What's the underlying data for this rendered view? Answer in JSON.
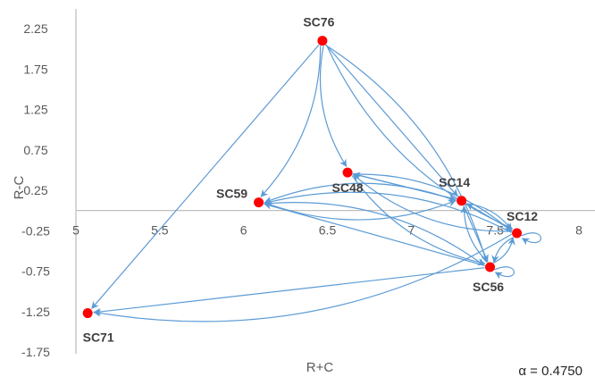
{
  "chart_data": {
    "type": "scatter",
    "xlabel": "R+C",
    "ylabel": "R-C",
    "xlim": [
      5,
      8
    ],
    "ylim": [
      -1.75,
      2.25
    ],
    "x_ticks": [
      "5",
      "5.5",
      "6",
      "6.5",
      "7",
      "7.5",
      "8"
    ],
    "y_ticks": [
      "2.25",
      "1.75",
      "1.25",
      "0.75",
      "0.25",
      "-0.25",
      "-0.75",
      "-1.25",
      "-1.75"
    ],
    "annotation": "α = 0.4750",
    "grid": false,
    "legend": "none",
    "marker_color": "#ff0000",
    "edge_color": "#5b9bd5",
    "points": [
      {
        "label": "SC76",
        "x": 6.47,
        "y": 2.1
      },
      {
        "label": "SC48",
        "x": 6.62,
        "y": 0.47
      },
      {
        "label": "SC59",
        "x": 6.09,
        "y": 0.1
      },
      {
        "label": "SC14",
        "x": 7.3,
        "y": 0.12
      },
      {
        "label": "SC12",
        "x": 7.63,
        "y": -0.28
      },
      {
        "label": "SC56",
        "x": 7.47,
        "y": -0.7
      },
      {
        "label": "SC71",
        "x": 5.07,
        "y": -1.27
      }
    ],
    "edges": [
      [
        "SC76",
        "SC71"
      ],
      [
        "SC76",
        "SC59"
      ],
      [
        "SC76",
        "SC48"
      ],
      [
        "SC76",
        "SC14"
      ],
      [
        "SC76",
        "SC12"
      ],
      [
        "SC76",
        "SC56"
      ],
      [
        "SC48",
        "SC14"
      ],
      [
        "SC48",
        "SC12"
      ],
      [
        "SC48",
        "SC56"
      ],
      [
        "SC14",
        "SC48"
      ],
      [
        "SC14",
        "SC59"
      ],
      [
        "SC14",
        "SC12"
      ],
      [
        "SC14",
        "SC56"
      ],
      [
        "SC12",
        "SC48"
      ],
      [
        "SC12",
        "SC59"
      ],
      [
        "SC12",
        "SC14"
      ],
      [
        "SC12",
        "SC56"
      ],
      [
        "SC12",
        "SC71"
      ],
      [
        "SC56",
        "SC59"
      ],
      [
        "SC56",
        "SC14"
      ],
      [
        "SC56",
        "SC12"
      ],
      [
        "SC56",
        "SC71"
      ],
      [
        "SC59",
        "SC14"
      ],
      [
        "SC59",
        "SC56"
      ]
    ]
  }
}
